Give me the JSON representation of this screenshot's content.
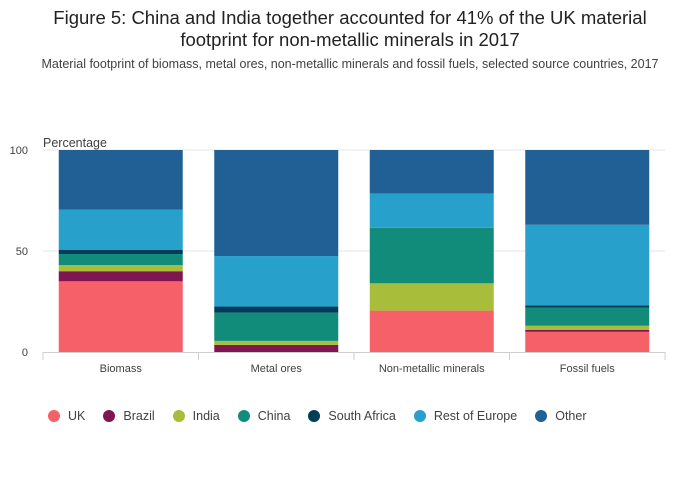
{
  "title_lines": [
    "Figure 5: China and India together accounted for 41% of the UK material",
    "footprint for non-metallic minerals in 2017"
  ],
  "subtitle": "Material footprint of biomass, metal ores, non-metallic minerals and fossil fuels, selected source countries, 2017",
  "colors": {
    "UK": "#f66068",
    "Brazil": "#801650",
    "India": "#a8bd3a",
    "China": "#118c7b",
    "South Africa": "#003d59",
    "Rest of Europe": "#27a0cc",
    "Other": "#206095"
  },
  "chart_data": {
    "type": "bar",
    "stacked": true,
    "title": "Figure 5: China and India together accounted for 41% of the UK material footprint for non-metallic minerals in 2017",
    "subtitle": "Material footprint of biomass, metal ores, non-metallic minerals and fossil fuels, selected source countries, 2017",
    "ylabel": "Percentage",
    "xlabel": "",
    "ylim": [
      0,
      100
    ],
    "yticks": [
      0,
      50,
      100
    ],
    "grid": true,
    "legend_position": "bottom",
    "categories": [
      "Biomass",
      "Metal ores",
      "Non-metallic minerals",
      "Fossil fuels"
    ],
    "series": [
      {
        "name": "UK",
        "values": [
          35,
          0,
          20.5,
          10
        ]
      },
      {
        "name": "Brazil",
        "values": [
          5,
          3.5,
          0,
          1
        ]
      },
      {
        "name": "India",
        "values": [
          3,
          2,
          13.5,
          2
        ]
      },
      {
        "name": "China",
        "values": [
          5.5,
          14,
          27.5,
          9
        ]
      },
      {
        "name": "South Africa",
        "values": [
          2,
          3,
          0,
          1
        ]
      },
      {
        "name": "Rest of Europe",
        "values": [
          20,
          25,
          17,
          40
        ]
      },
      {
        "name": "Other",
        "values": [
          29.5,
          52.5,
          21.5,
          37
        ]
      }
    ]
  }
}
